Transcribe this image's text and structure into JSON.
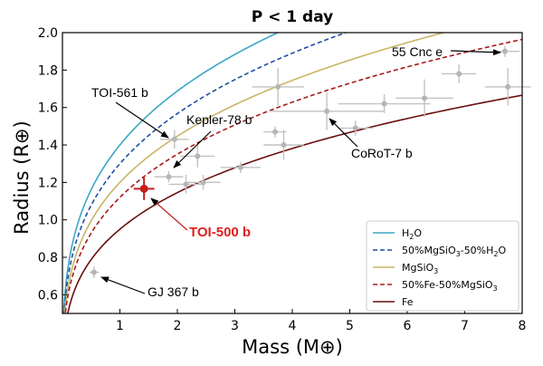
{
  "chart_data": {
    "type": "scatter",
    "title": "P < 1 day",
    "xlabel": "Mass (M⊕)",
    "ylabel": "Radius (R⊕)",
    "xlim": [
      0,
      8
    ],
    "ylim": [
      0.5,
      2.0
    ],
    "xticks": [
      "1",
      "2",
      "3",
      "4",
      "5",
      "6",
      "7",
      "8"
    ],
    "yticks": [
      "0.6",
      "0.8",
      "1.0",
      "1.2",
      "1.4",
      "1.6",
      "1.8",
      "2.0"
    ],
    "curves": [
      {
        "name": "H2O",
        "color": "#3aa6c6",
        "style": "solid",
        "a": 1.4
      },
      {
        "name": "50%MgSiO3-50%H2O",
        "color": "#1f4fa0",
        "style": "dashed",
        "a": 1.3
      },
      {
        "name": "MgSiO3",
        "color": "#c9b567",
        "style": "solid",
        "a": 1.2
      },
      {
        "name": "50%Fe-50%MgSiO3",
        "color": "#a61b1b",
        "style": "dashed",
        "a": 1.12
      },
      {
        "name": "Fe",
        "color": "#6b0f0f",
        "style": "solid",
        "a": 0.95
      }
    ],
    "points": [
      {
        "x": 0.55,
        "y": 0.72,
        "xerr": 0.08,
        "yerr": 0.03
      },
      {
        "x": 1.85,
        "y": 1.23,
        "xerr": 0.25,
        "yerr": 0.03
      },
      {
        "x": 1.95,
        "y": 1.43,
        "xerr": 0.25,
        "yerr": 0.05
      },
      {
        "x": 2.15,
        "y": 1.19,
        "xerr": 0.3,
        "yerr": 0.05
      },
      {
        "x": 2.35,
        "y": 1.34,
        "xerr": 0.3,
        "yerr": 0.06
      },
      {
        "x": 2.45,
        "y": 1.2,
        "xerr": 0.3,
        "yerr": 0.04
      },
      {
        "x": 3.1,
        "y": 1.28,
        "xerr": 0.35,
        "yerr": 0.03
      },
      {
        "x": 3.7,
        "y": 1.47,
        "xerr": 0.2,
        "yerr": 0.03
      },
      {
        "x": 3.75,
        "y": 1.71,
        "xerr": 0.45,
        "yerr": 0.1
      },
      {
        "x": 3.85,
        "y": 1.4,
        "xerr": 0.35,
        "yerr": 0.08
      },
      {
        "x": 4.6,
        "y": 1.58,
        "xerr": 1.0,
        "yerr": 0.1
      },
      {
        "x": 5.1,
        "y": 1.49,
        "xerr": 0.3,
        "yerr": 0.04
      },
      {
        "x": 5.6,
        "y": 1.62,
        "xerr": 0.8,
        "yerr": 0.05
      },
      {
        "x": 6.3,
        "y": 1.65,
        "xerr": 0.5,
        "yerr": 0.1
      },
      {
        "x": 6.9,
        "y": 1.78,
        "xerr": 0.3,
        "yerr": 0.05
      },
      {
        "x": 7.7,
        "y": 1.9,
        "xerr": 0.25,
        "yerr": 0.03
      },
      {
        "x": 7.75,
        "y": 1.71,
        "xerr": 0.4,
        "yerr": 0.1
      }
    ],
    "highlight": {
      "x": 1.42,
      "y": 1.166,
      "xerr": 0.18,
      "yerr": 0.06,
      "label": "TOI-500 b",
      "color": "#c41e1e"
    },
    "annotations": [
      {
        "text": "55 Cnc e",
        "x": 7.7,
        "y": 1.9
      },
      {
        "text": "TOI-561 b",
        "x": 1.95,
        "y": 1.43
      },
      {
        "text": "Kepler-78 b",
        "x": 1.85,
        "y": 1.23
      },
      {
        "text": "CoRoT-7 b",
        "x": 4.6,
        "y": 1.58
      },
      {
        "text": "GJ 367 b",
        "x": 0.55,
        "y": 0.72
      },
      {
        "text": "TOI-500 b",
        "x": 1.42,
        "y": 1.166
      }
    ],
    "legend": {
      "placement": "bottom-right",
      "entries": [
        "H2O",
        "50%MgSiO3-50%H2O",
        "MgSiO3",
        "50%Fe-50%MgSiO3",
        "Fe"
      ]
    }
  }
}
